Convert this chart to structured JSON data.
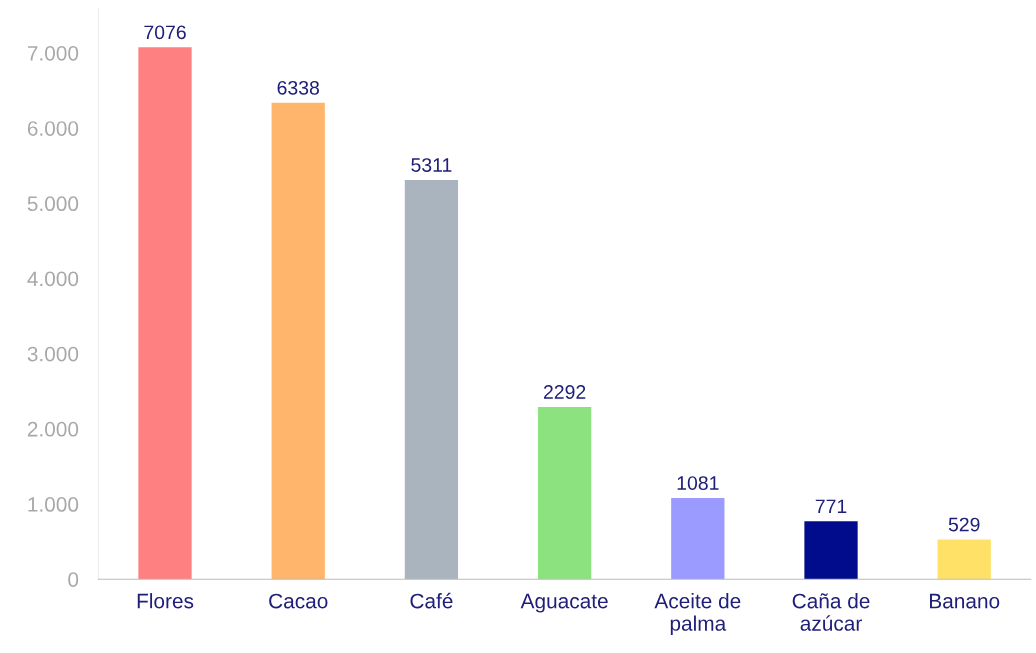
{
  "chart_data": {
    "type": "bar",
    "categories": [
      "Flores",
      "Cacao",
      "Café",
      "Aguacate",
      "Aceite de\npalma",
      "Caña de\nazúcar",
      "Banano"
    ],
    "values": [
      7076,
      6338,
      5311,
      2292,
      1081,
      771,
      529
    ],
    "colors": [
      "#ff8080",
      "#ffb56b",
      "#aab4be",
      "#8ce27e",
      "#9a9aff",
      "#000c8c",
      "#ffe168"
    ],
    "ylim": [
      0,
      7600
    ],
    "yticks": [
      0,
      {
        "value": 1000,
        "label": "1.000"
      },
      {
        "value": 2000,
        "label": "2.000"
      },
      {
        "value": 3000,
        "label": "3.000"
      },
      {
        "value": 4000,
        "label": "4.000"
      },
      {
        "value": 5000,
        "label": "5.000"
      },
      {
        "value": 6000,
        "label": "6.000"
      },
      {
        "value": 7000,
        "label": "7.000"
      }
    ],
    "data_labels": true,
    "grid": false,
    "legend": false
  }
}
